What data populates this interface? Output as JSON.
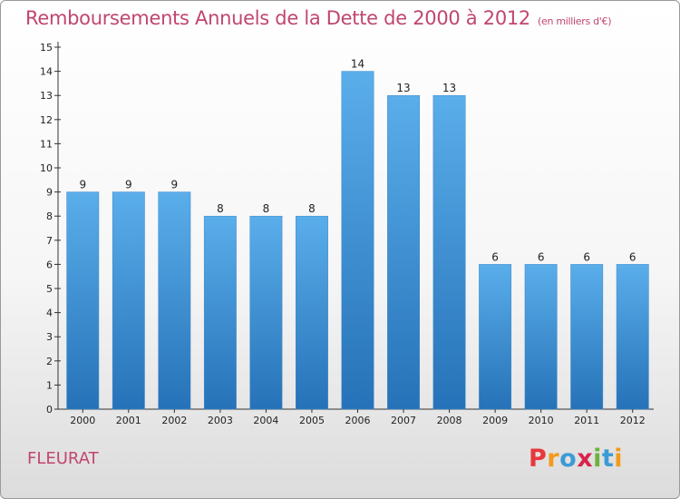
{
  "header": {
    "title": "Remboursements Annuels de la Dette de 2000 à 2012",
    "unit": "(en milliers d'€)"
  },
  "footer": {
    "place": "FLEURAT",
    "logo": "Proxiti"
  },
  "chart_data": {
    "type": "bar",
    "title": "Remboursements Annuels de la Dette de 2000 à 2012",
    "subtitle": "(en milliers d'€)",
    "categories": [
      "2000",
      "2001",
      "2002",
      "2003",
      "2004",
      "2005",
      "2006",
      "2007",
      "2008",
      "2009",
      "2010",
      "2011",
      "2012"
    ],
    "values": [
      9,
      9,
      9,
      8,
      8,
      8,
      14,
      13,
      13,
      6,
      6,
      6,
      6
    ],
    "ylim": [
      0,
      15
    ],
    "yticks": [
      0,
      1,
      2,
      3,
      4,
      5,
      6,
      7,
      8,
      9,
      10,
      11,
      12,
      13,
      14,
      15
    ],
    "xlabel": "",
    "ylabel": "",
    "grid": false,
    "legend": "none",
    "bar_color": "#4a9fe0"
  },
  "colors": {
    "title": "#c0466e",
    "logo_letters": [
      "#e8383d",
      "#f39a1c",
      "#3c9bd6",
      "#d8234c",
      "#6cb33e",
      "#3c9bd6",
      "#f39a1c"
    ]
  }
}
